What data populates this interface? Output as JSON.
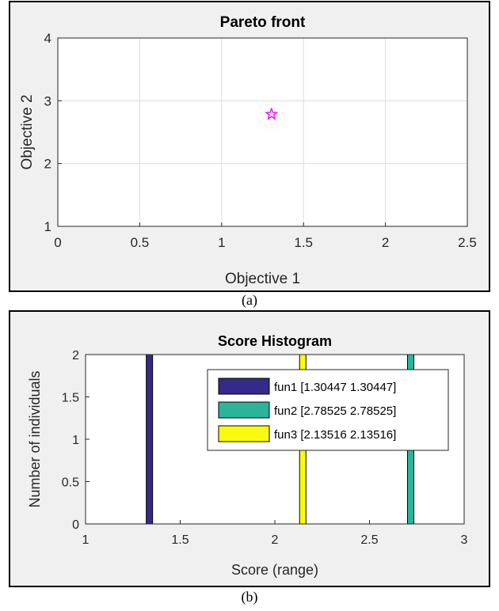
{
  "captions": {
    "a": "(a)",
    "b": "(b)"
  },
  "chart_data": [
    {
      "type": "scatter",
      "title": "Pareto front",
      "xlabel": "Objective 1",
      "ylabel": "Objective 2",
      "xlim": [
        0,
        2.5
      ],
      "ylim": [
        1,
        4
      ],
      "xticks": [
        0,
        0.5,
        1,
        1.5,
        2,
        2.5
      ],
      "yticks": [
        1,
        2,
        3,
        4
      ],
      "grid": true,
      "marker": "pentagram",
      "marker_color": "#ff00ff",
      "points": [
        {
          "x": 1.30447,
          "y": 2.78525
        }
      ]
    },
    {
      "type": "bar",
      "title": "Score Histogram",
      "xlabel": "Score (range)",
      "ylabel": "Number of individuals",
      "xlim": [
        1,
        3
      ],
      "ylim": [
        0,
        2
      ],
      "xticks": [
        1,
        1.5,
        2,
        2.5,
        3
      ],
      "yticks": [
        0,
        0.5,
        1,
        1.5,
        2
      ],
      "grid": false,
      "legend_position": "top-right",
      "series": [
        {
          "name": "fun1 [1.30447  1.30447]",
          "x": 1.3375,
          "value": 2,
          "color": "#352a87"
        },
        {
          "name": "fun2 [2.78525  2.78525]",
          "x": 2.7175,
          "value": 2,
          "color": "#2ab59a"
        },
        {
          "name": "fun3 [2.13516  2.13516]",
          "x": 2.1475,
          "value": 2,
          "color": "#f9fb0e"
        }
      ]
    }
  ]
}
